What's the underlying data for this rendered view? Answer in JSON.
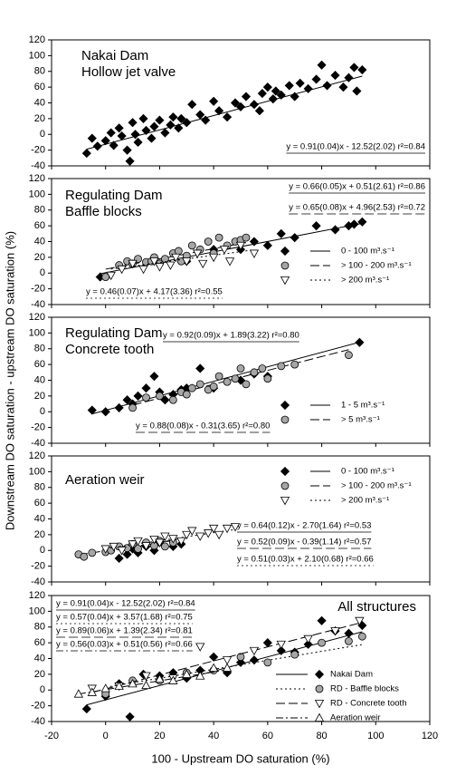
{
  "chart_data": [
    {
      "type": "scatter",
      "title": [
        "Nakai Dam",
        "Hollow jet valve"
      ],
      "y_label": "Downstream DO saturation - upstream DO saturation (%)",
      "xlim": [
        -20,
        120
      ],
      "ylim": [
        -40,
        120
      ],
      "yticks": [
        -40,
        -20,
        0,
        20,
        40,
        60,
        80,
        100,
        120
      ],
      "series": [
        {
          "marker": "diamond",
          "color": "#000000",
          "line_style": "solid",
          "x": [
            -7,
            -5,
            -3,
            0,
            2,
            3,
            5,
            6,
            8,
            9,
            10,
            11,
            12,
            14,
            15,
            17,
            18,
            20,
            22,
            24,
            25,
            27,
            28,
            30,
            32,
            35,
            37,
            40,
            42,
            45,
            48,
            50,
            52,
            55,
            57,
            58,
            60,
            62,
            63,
            65,
            68,
            70,
            72,
            75,
            78,
            80,
            82,
            85,
            88,
            90,
            92,
            93,
            95
          ],
          "values": [
            -24,
            -5,
            -15,
            -8,
            2,
            -14,
            8,
            -2,
            -20,
            -34,
            15,
            0,
            -10,
            20,
            5,
            -5,
            10,
            18,
            2,
            12,
            22,
            8,
            20,
            15,
            38,
            25,
            18,
            42,
            30,
            22,
            40,
            35,
            48,
            38,
            30,
            52,
            60,
            45,
            55,
            50,
            62,
            48,
            65,
            58,
            70,
            88,
            62,
            75,
            60,
            72,
            85,
            55,
            82
          ],
          "fit": {
            "slope": 0.91,
            "intercept": -12.52,
            "label": "y = 0.91(0.04)x - 12.52(2.02)  r²=0.84"
          }
        }
      ]
    },
    {
      "type": "scatter",
      "title": [
        "Regulating Dam",
        "Baffle blocks"
      ],
      "legend": "right",
      "xlim": [
        -20,
        120
      ],
      "ylim": [
        -40,
        120
      ],
      "yticks": [
        -40,
        -20,
        0,
        20,
        40,
        60,
        80,
        100,
        120
      ],
      "series": [
        {
          "name": "0 - 100 m³.s⁻¹",
          "marker": "diamond",
          "color": "#000000",
          "line_style": "solid",
          "x": [
            -2,
            30,
            40,
            50,
            55,
            60,
            65,
            70,
            78,
            85,
            90,
            92,
            95
          ],
          "values": [
            -5,
            15,
            30,
            30,
            40,
            35,
            50,
            45,
            60,
            55,
            60,
            62,
            65
          ],
          "fit": {
            "slope": 0.66,
            "intercept": 0.51,
            "label": "y = 0.66(0.05)x + 0.51(2.61)  r²=0.86"
          }
        },
        {
          "name": "> 100 - 200 m³.s⁻¹",
          "marker": "circle",
          "color": "#a6a6a6",
          "line_style": "dashed",
          "x": [
            0,
            5,
            8,
            10,
            12,
            15,
            17,
            18,
            20,
            22,
            25,
            27,
            28,
            30,
            32,
            35,
            38,
            40,
            42,
            45,
            48,
            50,
            52
          ],
          "values": [
            -5,
            10,
            15,
            12,
            18,
            14,
            15,
            20,
            12,
            18,
            25,
            28,
            15,
            22,
            35,
            30,
            40,
            25,
            45,
            35,
            40,
            42,
            45
          ],
          "fit": {
            "slope": 0.65,
            "intercept": 4.96,
            "label": "y = 0.65(0.08)x + 4.96(2.53)  r²=0.72"
          }
        },
        {
          "name": "> 200 m³.s⁻¹",
          "marker": "triangle-down",
          "color": "#ffffff",
          "line_style": "dotted",
          "x": [
            2,
            6,
            10,
            14,
            18,
            20,
            24,
            26,
            30,
            34,
            36,
            40,
            44,
            46,
            50,
            55
          ],
          "values": [
            -3,
            5,
            12,
            5,
            15,
            8,
            10,
            20,
            15,
            25,
            12,
            20,
            30,
            15,
            35,
            25
          ],
          "fit": {
            "slope": 0.46,
            "intercept": 4.17,
            "label": "y = 0.46(0.07)x + 4.17(3.36)  r²=0.55"
          }
        }
      ]
    },
    {
      "type": "scatter",
      "title": [
        "Regulating Dam",
        "Concrete tooth"
      ],
      "legend": "lower right",
      "xlim": [
        -20,
        120
      ],
      "ylim": [
        -40,
        120
      ],
      "yticks": [
        -40,
        -20,
        0,
        20,
        40,
        60,
        80,
        100,
        120
      ],
      "series": [
        {
          "name": "1 - 5 m³.s⁻¹",
          "marker": "diamond",
          "color": "#000000",
          "line_style": "solid",
          "x": [
            -5,
            0,
            5,
            8,
            10,
            12,
            15,
            18,
            20,
            22,
            25,
            28,
            30,
            35,
            40,
            50,
            55,
            60,
            94
          ],
          "values": [
            2,
            0,
            5,
            15,
            10,
            20,
            30,
            45,
            25,
            15,
            22,
            28,
            30,
            55,
            30,
            40,
            48,
            45,
            88
          ],
          "fit": {
            "slope": 0.92,
            "intercept": 1.89,
            "label": "y = 0.92(0.09)x + 1.89(3.22)  r²=0.80"
          }
        },
        {
          "name": "> 5 m³.s⁻¹",
          "marker": "circle",
          "color": "#a6a6a6",
          "line_style": "dashed",
          "x": [
            10,
            15,
            20,
            25,
            28,
            30,
            32,
            35,
            38,
            40,
            42,
            45,
            48,
            50,
            52,
            55,
            58,
            60,
            65,
            70,
            90
          ],
          "values": [
            5,
            18,
            20,
            15,
            25,
            22,
            30,
            35,
            28,
            32,
            45,
            38,
            42,
            55,
            35,
            50,
            55,
            42,
            58,
            60,
            72
          ],
          "fit": {
            "slope": 0.88,
            "intercept": -0.31,
            "label": "y = 0.88(0.08)x - 0.31(3.65)  r²=0.80"
          }
        }
      ]
    },
    {
      "type": "scatter",
      "title": [
        "Aeration weir"
      ],
      "legend": "upper right",
      "xlim": [
        -20,
        120
      ],
      "ylim": [
        -40,
        120
      ],
      "yticks": [
        -40,
        -20,
        0,
        20,
        40,
        60,
        80,
        100,
        120
      ],
      "series": [
        {
          "name": "0 - 100 m³.s⁻¹",
          "marker": "diamond",
          "color": "#000000",
          "line_style": "solid",
          "x": [
            5,
            8,
            10,
            12,
            15,
            18,
            20,
            25,
            28
          ],
          "values": [
            -10,
            -5,
            2,
            -3,
            5,
            0,
            10,
            5,
            8
          ],
          "fit": {
            "slope": 0.64,
            "intercept": -2.7,
            "label": "y = 0.64(0.12)x - 2.70(1.64)  r²=0.53"
          }
        },
        {
          "name": "> 100 - 200 m³.s⁻¹",
          "marker": "circle",
          "color": "#a6a6a6",
          "line_style": "dashed",
          "x": [
            -10,
            -8,
            -5,
            0,
            2,
            5,
            8,
            10,
            12,
            15,
            18,
            20,
            22,
            25
          ],
          "values": [
            -5,
            -8,
            -3,
            -2,
            0,
            5,
            3,
            8,
            2,
            10,
            6,
            12,
            5,
            10
          ],
          "fit": {
            "slope": 0.52,
            "intercept": -0.39,
            "label": "y = 0.52(0.09)x - 0.39(1.14)  r²=0.57"
          }
        },
        {
          "name": "> 200 m³.s⁻¹",
          "marker": "triangle-down",
          "color": "#ffffff",
          "line_style": "dotted",
          "x": [
            0,
            3,
            6,
            10,
            12,
            15,
            18,
            20,
            22,
            25,
            28,
            30,
            32,
            35,
            38,
            40,
            42,
            45,
            48
          ],
          "values": [
            2,
            5,
            0,
            8,
            12,
            6,
            14,
            10,
            18,
            15,
            12,
            20,
            25,
            18,
            22,
            28,
            20,
            28,
            30
          ],
          "fit": {
            "slope": 0.51,
            "intercept": 2.1,
            "label": "y = 0.51(0.03)x + 2.10(0.68)  r²=0.66"
          }
        }
      ]
    },
    {
      "type": "scatter",
      "title": [
        "All structures"
      ],
      "legend": "lower right",
      "x_label": "100 - Upstream DO saturation (%)",
      "xlim": [
        -20,
        120
      ],
      "ylim": [
        -40,
        120
      ],
      "xticks": [
        -20,
        0,
        20,
        40,
        60,
        80,
        100,
        120
      ],
      "yticks": [
        -40,
        -20,
        0,
        20,
        40,
        60,
        80,
        100,
        120
      ],
      "series": [
        {
          "name": "Nakai Dam",
          "marker": "diamond",
          "color": "#000000",
          "line_style": "solid",
          "x": [
            -7,
            0,
            5,
            9,
            14,
            20,
            25,
            30,
            35,
            40,
            45,
            50,
            55,
            60,
            65,
            70,
            75,
            80,
            85,
            90,
            95
          ],
          "values": [
            -24,
            -8,
            8,
            -34,
            20,
            18,
            22,
            15,
            25,
            42,
            22,
            35,
            38,
            60,
            50,
            48,
            58,
            88,
            75,
            72,
            82
          ],
          "fit": {
            "slope": 0.91,
            "intercept": -12.52,
            "label": "y = 0.91(0.04)x - 12.52(2.02)  r²=0.84"
          }
        },
        {
          "name": "RD - Baffle blocks",
          "marker": "circle",
          "color": "#a6a6a6",
          "line_style": "dotted",
          "x": [
            0,
            10,
            20,
            30,
            40,
            50,
            60,
            70,
            80,
            90,
            95
          ],
          "values": [
            -5,
            12,
            12,
            22,
            25,
            42,
            35,
            45,
            60,
            62,
            68
          ],
          "fit": {
            "slope": 0.57,
            "intercept": 3.57,
            "label": "y = 0.57(0.04)x + 3.57(1.68)  r²=0.75"
          }
        },
        {
          "name": "RD - Concrete tooth",
          "marker": "triangle-down",
          "color": "#ffffff",
          "line_style": "dashed",
          "x": [
            -5,
            5,
            15,
            25,
            35,
            45,
            55,
            65,
            75,
            85,
            94
          ],
          "values": [
            2,
            5,
            18,
            15,
            55,
            38,
            50,
            58,
            65,
            75,
            88
          ],
          "fit": {
            "slope": 0.89,
            "intercept": 1.39,
            "label": "y = 0.89(0.06)x + 1.39(2.34)  r²=0.81"
          }
        },
        {
          "name": "Aeration weir",
          "marker": "triangle-up",
          "color": "#ffffff",
          "line_style": "dash-dot",
          "x": [
            -10,
            -5,
            0,
            5,
            10,
            15,
            20,
            25,
            30,
            35,
            40,
            45
          ],
          "values": [
            -5,
            -3,
            2,
            5,
            8,
            6,
            14,
            12,
            20,
            18,
            28,
            28
          ],
          "fit": {
            "slope": 0.56,
            "intercept": 0.51,
            "label": "y = 0.56(0.03)x + 0.51(0.56)  r²=0.66"
          }
        }
      ]
    }
  ]
}
